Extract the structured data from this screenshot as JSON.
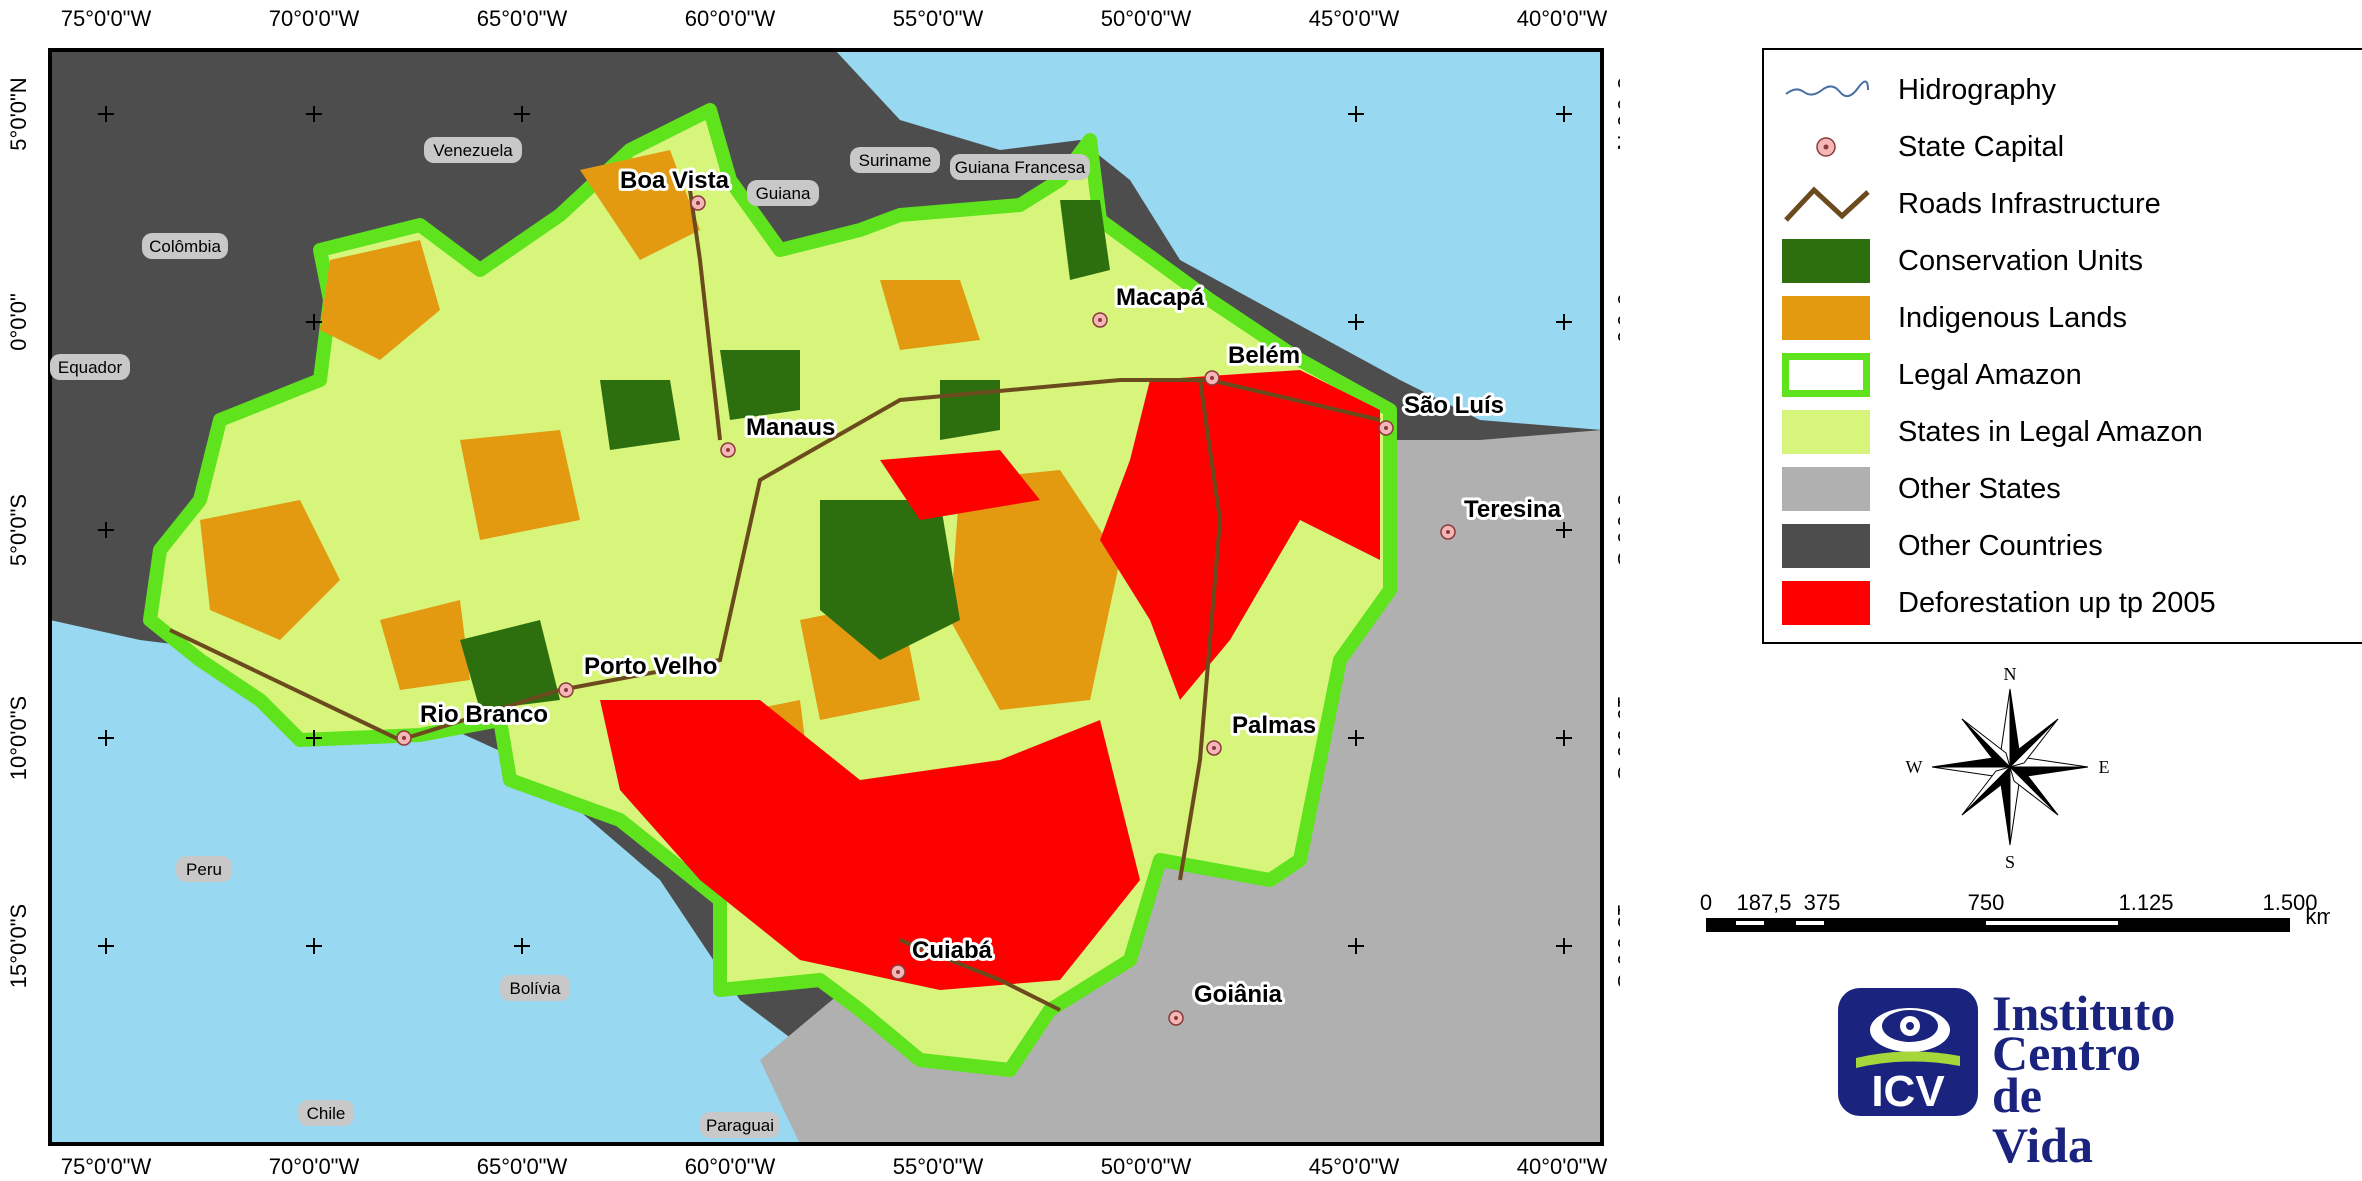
{
  "grid": {
    "longitudes": [
      "75°0'0\"W",
      "70°0'0\"W",
      "65°0'0\"W",
      "60°0'0\"W",
      "55°0'0\"W",
      "50°0'0\"W",
      "45°0'0\"W",
      "40°0'0\"W"
    ],
    "latitudes": [
      "5°0'0\"N",
      "0°0'0\"",
      "5°0'0\"S",
      "10°0'0\"S",
      "15°0'0\"S"
    ]
  },
  "countries": [
    "Venezuela",
    "Suriname",
    "Guiana Francesa",
    "Guiana",
    "Colômbia",
    "Equador",
    "Peru",
    "Bolívia",
    "Chile",
    "Paraguai"
  ],
  "capitals": [
    "Boa Vista",
    "Macapá",
    "Belém",
    "São Luís",
    "Manaus",
    "Teresina",
    "Porto Velho",
    "Rio Branco",
    "Palmas",
    "Cuiabá",
    "Goiânia"
  ],
  "legend": [
    {
      "label": "Hidrography",
      "symbol": "river-line-icon",
      "color": "#4a6fa5"
    },
    {
      "label": "State Capital",
      "symbol": "capital-dot-icon",
      "color": "#f4b6b6"
    },
    {
      "label": "Roads Infrastructure",
      "symbol": "road-line-icon",
      "color": "#6b4a1e"
    },
    {
      "label": "Conservation Units",
      "symbol": "fill",
      "color": "#2d6e0f"
    },
    {
      "label": "Indigenous Lands",
      "symbol": "fill",
      "color": "#e39a10"
    },
    {
      "label": "Legal Amazon",
      "symbol": "outline",
      "color": "#5ee31d"
    },
    {
      "label": "States in Legal Amazon",
      "symbol": "fill",
      "color": "#d6f57a"
    },
    {
      "label": "Other States",
      "symbol": "fill",
      "color": "#b0b0b0"
    },
    {
      "label": "Other Countries",
      "symbol": "fill",
      "color": "#4d4d4d"
    },
    {
      "label": "Deforestation up tp 2005",
      "symbol": "fill",
      "color": "#ff0000"
    }
  ],
  "compass": {
    "n": "N",
    "s": "S",
    "e": "E",
    "w": "W"
  },
  "scale": {
    "ticks": [
      "0",
      "187,5",
      "375",
      "750",
      "1.125",
      "1.500"
    ],
    "unit": "km"
  },
  "logo": {
    "abbr": "ICV",
    "line1": "Instituto",
    "line2": "Centro",
    "line3": "de Vida"
  },
  "colors": {
    "ocean": "#98d8f0",
    "other_countries": "#4d4d4d",
    "other_states": "#b0b0b0",
    "legal_amazon_fill": "#d6f57a",
    "legal_amazon_border": "#5ee31d",
    "conservation": "#2d6e0f",
    "indigenous": "#e39a10",
    "deforestation": "#ff0000",
    "roads": "#6b4a1e",
    "rivers": "#4a6fa5",
    "logo_blue": "#1a237e"
  }
}
